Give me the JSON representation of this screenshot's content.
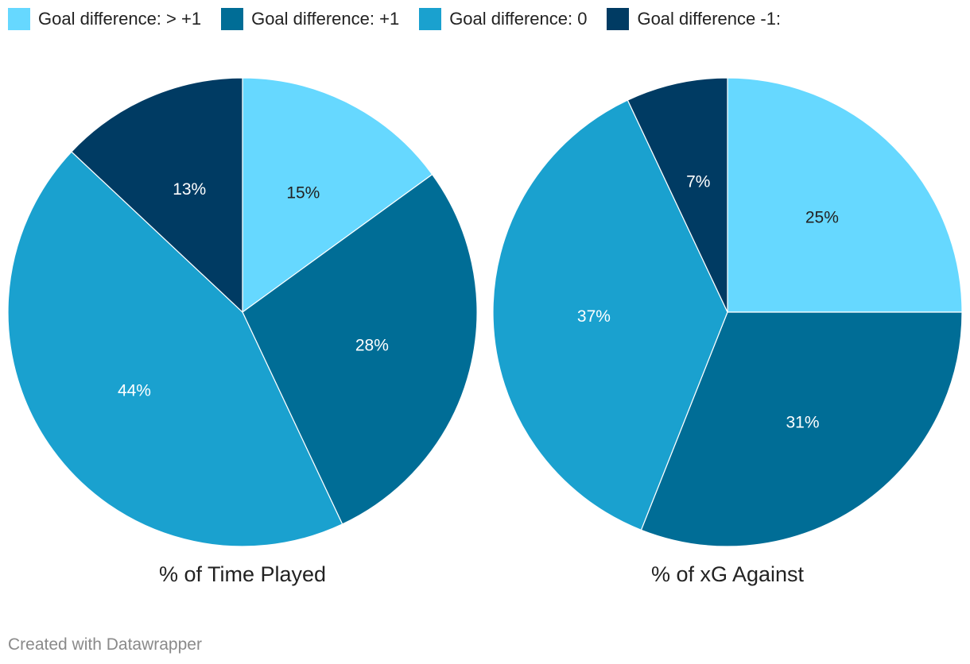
{
  "legend": {
    "items": [
      {
        "label": "Goal difference: > +1",
        "color": "#66d8ff"
      },
      {
        "label": "Goal difference: +1",
        "color": "#006d96"
      },
      {
        "label": "Goal difference: 0",
        "color": "#1aa1cf"
      },
      {
        "label": "Goal difference -1:",
        "color": "#003b63"
      }
    ]
  },
  "chart_data": [
    {
      "type": "pie",
      "title": "% of Time Played",
      "categories": [
        "Goal difference: > +1",
        "Goal difference: +1",
        "Goal difference: 0",
        "Goal difference -1:"
      ],
      "values": [
        15,
        28,
        44,
        13
      ],
      "labels": [
        "15%",
        "28%",
        "44%",
        "13%"
      ],
      "colors": [
        "#66d8ff",
        "#006d96",
        "#1aa1cf",
        "#003b63"
      ],
      "label_colors": [
        "#222222",
        "#ffffff",
        "#ffffff",
        "#ffffff"
      ]
    },
    {
      "type": "pie",
      "title": "% of xG Against",
      "categories": [
        "Goal difference: > +1",
        "Goal difference: +1",
        "Goal difference: 0",
        "Goal difference -1:"
      ],
      "values": [
        25,
        31,
        37,
        7
      ],
      "labels": [
        "25%",
        "31%",
        "37%",
        "7%"
      ],
      "colors": [
        "#66d8ff",
        "#006d96",
        "#1aa1cf",
        "#003b63"
      ],
      "label_colors": [
        "#222222",
        "#ffffff",
        "#ffffff",
        "#ffffff"
      ]
    }
  ],
  "footer": {
    "credit": "Created with Datawrapper"
  }
}
